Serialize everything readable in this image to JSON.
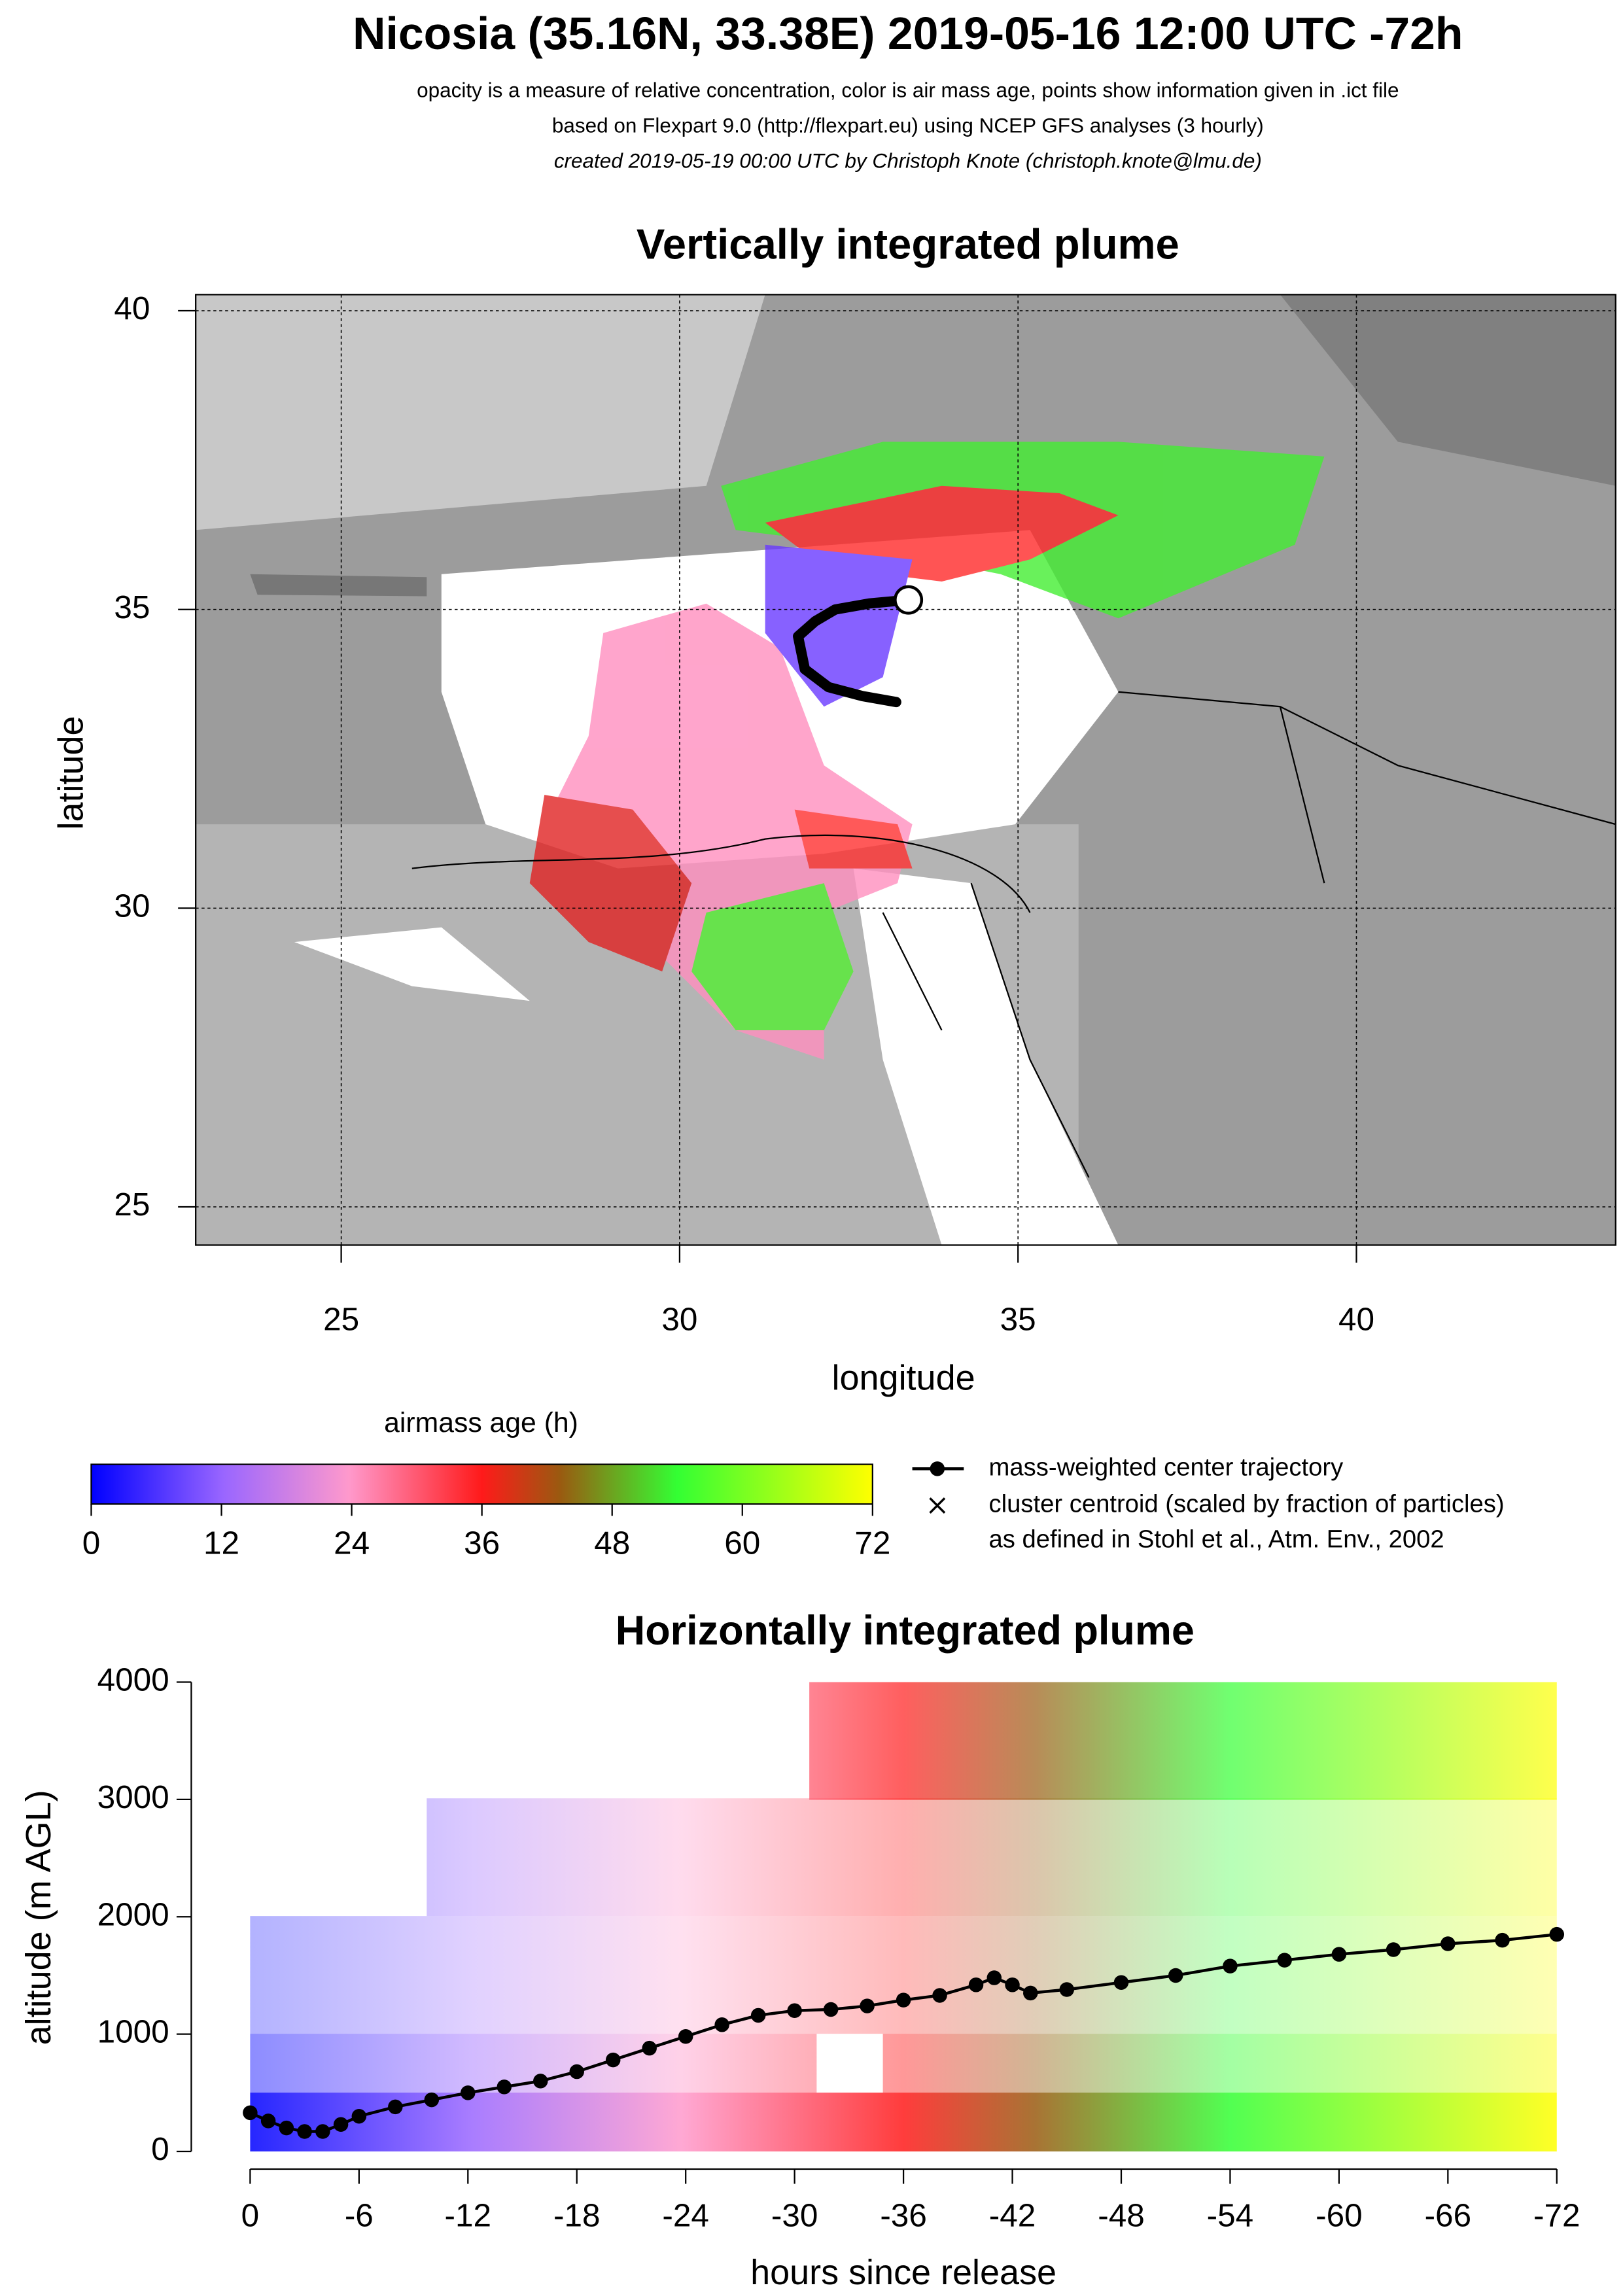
{
  "title": "Nicosia (35.16N, 33.38E) 2019-05-16 12:00 UTC -72h",
  "subtitle_lines": [
    "opacity is a measure of relative concentration, color is air mass age, points show information given in .ict file",
    "based on Flexpart 9.0 (http://flexpart.eu) using NCEP GFS analyses (3 hourly)",
    "created 2019-05-19 00:00 UTC by Christoph Knote (christoph.knote@lmu.de)"
  ],
  "map": {
    "type": "map",
    "title": "Vertically integrated plume",
    "xlabel": "longitude",
    "ylabel": "latitude",
    "xlim": [
      22.85,
      43.83
    ],
    "ylim": [
      24.36,
      40.27
    ],
    "xticks": [
      25,
      30,
      35,
      40
    ],
    "yticks": [
      25,
      30,
      35,
      40
    ],
    "grid": true,
    "release": {
      "lon": 33.38,
      "lat": 35.16
    },
    "trajectory": {
      "lon": [
        33.38,
        32.8,
        32.3,
        32.0,
        31.75,
        31.85,
        32.2,
        32.7,
        33.2
      ],
      "lat": [
        35.16,
        35.1,
        35.0,
        34.8,
        34.55,
        34.0,
        33.7,
        33.55,
        33.45
      ]
    }
  },
  "colorbar": {
    "title": "airmass age (h)",
    "lim": [
      0,
      72
    ],
    "ticks": [
      0,
      12,
      24,
      36,
      48,
      60,
      72
    ]
  },
  "legend": [
    "mass-weighted center trajectory",
    "cluster centroid (scaled by fraction of particles)",
    "as defined in Stohl et al., Atm. Env., 2002"
  ],
  "profile": {
    "type": "line",
    "title": "Horizontally integrated plume",
    "xlabel": "hours since release",
    "ylabel": "altitude (m AGL)",
    "xlim": [
      0,
      -72
    ],
    "ylim": [
      0,
      4000
    ],
    "xticks": [
      0,
      -6,
      -12,
      -18,
      -24,
      -30,
      -36,
      -42,
      -48,
      -54,
      -60,
      -66,
      -72
    ],
    "yticks": [
      0,
      1000,
      2000,
      3000,
      4000
    ],
    "x": [
      0,
      -1,
      -2,
      -3,
      -4,
      -5,
      -6,
      -8,
      -10,
      -12,
      -14,
      -16,
      -18,
      -20,
      -22,
      -24,
      -26,
      -28,
      -30,
      -32,
      -34,
      -36,
      -38,
      -40,
      -41,
      -42,
      -43,
      -45,
      -48,
      -51,
      -54,
      -57,
      -60,
      -63,
      -66,
      -69,
      -72
    ],
    "y": [
      330,
      260,
      200,
      170,
      170,
      230,
      300,
      380,
      440,
      500,
      550,
      600,
      680,
      780,
      880,
      980,
      1080,
      1160,
      1200,
      1210,
      1240,
      1290,
      1330,
      1420,
      1480,
      1420,
      1350,
      1380,
      1440,
      1500,
      1580,
      1630,
      1680,
      1720,
      1770,
      1800,
      1850
    ]
  }
}
